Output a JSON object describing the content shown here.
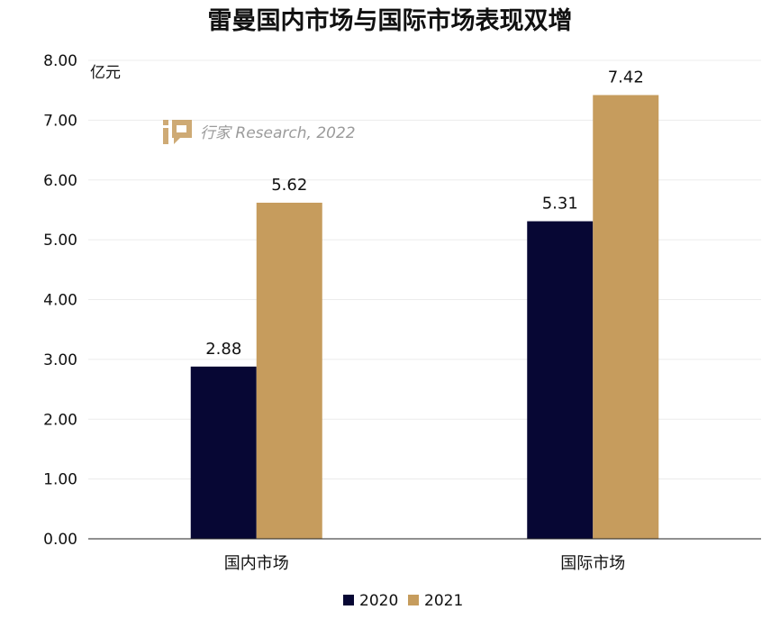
{
  "chart_data": {
    "type": "bar",
    "title": "雷曼国内市场与国际市场表现双增",
    "unit": "亿元",
    "categories": [
      "国内市场",
      "国际市场"
    ],
    "series": [
      {
        "name": "2020",
        "values": [
          2.88,
          5.31
        ],
        "color": "#070734"
      },
      {
        "name": "2021",
        "values": [
          5.62,
          7.42
        ],
        "color": "#C69C5D"
      }
    ],
    "ylim": [
      0,
      8
    ],
    "yticks": [
      "0.00",
      "1.00",
      "2.00",
      "3.00",
      "4.00",
      "5.00",
      "6.00",
      "7.00",
      "8.00"
    ],
    "grid": true,
    "legend": "bottom",
    "watermark": "行家 Research, 2022"
  }
}
